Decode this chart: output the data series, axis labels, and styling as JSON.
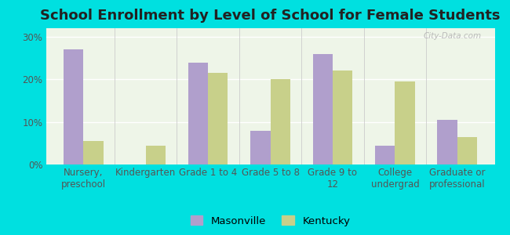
{
  "title": "School Enrollment by Level of School for Female Students",
  "categories": [
    "Nursery,\npreschool",
    "Kindergarten",
    "Grade 1 to 4",
    "Grade 5 to 8",
    "Grade 9 to\n12",
    "College\nundergrad",
    "Graduate or\nprofessional"
  ],
  "masonville": [
    27,
    0,
    24,
    8,
    26,
    4.5,
    10.5
  ],
  "kentucky": [
    5.5,
    4.5,
    21.5,
    20,
    22,
    19.5,
    6.5
  ],
  "bar_color_masonville": "#b09fcc",
  "bar_color_kentucky": "#c8d08a",
  "background_outer": "#00e0e0",
  "background_inner": "#eef5e8",
  "ylim": [
    0,
    32
  ],
  "yticks": [
    0,
    10,
    20,
    30
  ],
  "ytick_labels": [
    "0%",
    "10%",
    "20%",
    "30%"
  ],
  "legend_masonville": "Masonville",
  "legend_kentucky": "Kentucky",
  "title_fontsize": 13,
  "tick_fontsize": 8.5,
  "legend_fontsize": 9.5,
  "bar_width": 0.32
}
